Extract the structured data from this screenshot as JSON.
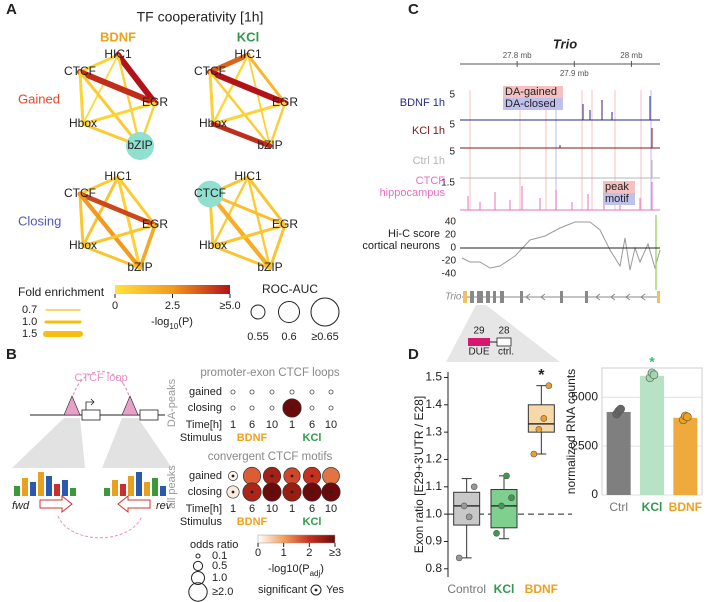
{
  "panels": {
    "A": {
      "label": "A",
      "title": "TF cooperativity [1h]",
      "columns": [
        {
          "name": "BDNF",
          "color": "#eea21b"
        },
        {
          "name": "KCl",
          "color": "#2f9a4c"
        }
      ],
      "rows": [
        {
          "name": "Gained",
          "color": "#e2452b"
        },
        {
          "name": "Closing",
          "color": "#5457b0"
        }
      ],
      "nodes": [
        "HIC1",
        "CTCF",
        "EGR",
        "Hbox",
        "bZIP"
      ],
      "node_color": "#8fe0cf",
      "colormap": [
        "#ffe23d",
        "#f29a1f",
        "#b3121a"
      ],
      "networks": [
        {
          "fold": [
            1.0,
            1.5,
            0.8,
            0.9,
            1.5,
            1.0,
            1.0,
            1.0,
            0.9,
            1.0
          ],
          "logp": [
            0.5,
            5.0,
            0.3,
            0.6,
            4.5,
            0.5,
            0.8,
            0.5,
            0.6,
            0.8
          ],
          "highlight": 4,
          "auc": 0.65
        },
        {
          "fold": [
            1.3,
            1.0,
            0.9,
            0.8,
            1.5,
            1.0,
            0.9,
            1.0,
            0.9,
            1.3
          ],
          "logp": [
            3.5,
            1.5,
            0.4,
            0.6,
            5.0,
            0.6,
            0.8,
            0.5,
            0.7,
            4.5
          ]
        },
        {
          "fold": [
            1.0,
            1.0,
            1.0,
            1.0,
            1.3,
            1.0,
            1.2,
            1.0,
            1.1,
            1.0
          ],
          "logp": [
            0.8,
            0.8,
            1.0,
            0.6,
            4.0,
            1.0,
            2.5,
            1.0,
            2.0,
            1.0
          ]
        },
        {
          "fold": [
            1.0,
            1.0,
            0.9,
            0.9,
            1.0,
            1.0,
            1.2,
            1.0,
            1.0,
            1.0
          ],
          "logp": [
            1.0,
            1.0,
            0.8,
            0.8,
            1.2,
            0.8,
            1.8,
            1.0,
            1.0,
            1.0
          ],
          "highlight": 1,
          "auc": 0.64
        }
      ],
      "legend": {
        "fold_title": "Fold enrichment",
        "fold_color": "#f5bf0f",
        "fold_ticks": [
          0.7,
          {
            "value": 1.0,
            "label": "1.0"
          },
          1.5
        ],
        "p_title": [
          "-log",
          "10",
          "(P)"
        ],
        "p_ticks": [
          0,
          2.5,
          {
            "value": 5,
            "label": "≥5.0"
          }
        ],
        "auc_title": "ROC-AUC",
        "auc_ticks": [
          0.55,
          0.6,
          {
            "value": 0.65,
            "label": "≥0.65"
          }
        ]
      }
    },
    "B": {
      "label": "B",
      "loop_label": "CTCF loop",
      "fwd": "fwd",
      "rev": "rev",
      "time_label": "Time[h]",
      "stimulus_label": "Stimulus",
      "times": [
        1,
        6,
        10
      ],
      "stimuli": [
        {
          "name": "BDNF",
          "color": "#eea21b"
        },
        {
          "name": "KCl",
          "color": "#2f9a4c"
        }
      ],
      "colormap": [
        "#ffffff",
        "#f4a05a",
        "#c8301e",
        "#6b0a0a"
      ],
      "plots": [
        {
          "side_label": "DA-peaks",
          "title": "promoter-exon CTCF loops",
          "rows": [
            "gained",
            "closing"
          ],
          "odds": [
            [
              0.1,
              0.1,
              0.1,
              0.1,
              0.1,
              0.1
            ],
            [
              0.1,
              0.1,
              0.1,
              2.0,
              0.1,
              0.1
            ]
          ],
          "logp": [
            [
              0,
              0,
              0,
              0,
              0,
              0
            ],
            [
              0,
              0,
              0,
              3,
              0,
              0
            ]
          ],
          "significant": [
            [
              false,
              false,
              false,
              false,
              false,
              false
            ],
            [
              false,
              false,
              false,
              true,
              false,
              false
            ]
          ]
        },
        {
          "side_label": "all peaks",
          "title": "convergent CTCF motifs",
          "rows": [
            "gained",
            "closing"
          ],
          "odds": [
            [
              0.5,
              1.8,
              1.8,
              1.6,
              1.8,
              1.7
            ],
            [
              0.9,
              2.0,
              2.0,
              2.0,
              2.0,
              2.0
            ]
          ],
          "logp": [
            [
              0.1,
              1.6,
              2.4,
              1.8,
              2.0,
              1.4
            ],
            [
              0.2,
              2.3,
              3,
              2.5,
              3,
              3
            ]
          ],
          "significant": [
            [
              true,
              false,
              true,
              true,
              true,
              false
            ],
            [
              true,
              true,
              true,
              true,
              true,
              true
            ]
          ]
        }
      ],
      "legend": {
        "odds_title": "odds ratio",
        "odds_ticks": [
          0.1,
          0.5,
          {
            "value": 1,
            "label": "1.0"
          },
          {
            "value": 2,
            "label": "≥2.0"
          }
        ],
        "p_title": [
          "-log10(P",
          "adj",
          ")"
        ],
        "p_ticks": [
          0,
          1,
          2,
          {
            "value": 3,
            "label": "≥3"
          }
        ],
        "sig_title": "significant",
        "sig_label": "Yes"
      }
    },
    "C": {
      "label": "C",
      "title": "Trio",
      "xlim": [
        27.7,
        28.05
      ],
      "xticks": [
        {
          "value": 27.8,
          "label": "27.8 mb"
        },
        {
          "value": 27.9,
          "label": "27.9 mb"
        },
        {
          "value": 28,
          "label": "28 mb"
        }
      ],
      "tracks": [
        {
          "name": [
            "BDNF 1h"
          ],
          "color": "#2a2a8a",
          "scale": "5"
        },
        {
          "name": [
            "KCl 1h"
          ],
          "color": "#7a1c1c",
          "scale": "5"
        },
        {
          "name": [
            "Ctrl 1h"
          ],
          "color": "#b5b5b5",
          "scale": "5"
        },
        {
          "name": [
            "CTCF",
            "hippocampus"
          ],
          "color": "#e86fc0",
          "scale": "1.5"
        }
      ],
      "da_legend": [
        {
          "name": "DA-gained",
          "color": "#f4c0c0"
        },
        {
          "name": "DA-closed",
          "color": "#c0c0ec"
        }
      ],
      "ctcf_legend": [
        {
          "name": "peak",
          "color": "#f4c0c0"
        },
        {
          "name": "motif",
          "color": "#c0c0ec"
        }
      ],
      "hic_title": [
        "Hi-C score",
        "cortical neurons"
      ],
      "hic_ylim": [
        -50,
        50
      ],
      "hic_yticks": [
        40,
        20,
        0,
        -20,
        -40
      ],
      "gene": "Trio",
      "exons": [
        "29",
        "28"
      ],
      "exon_labels": [
        "DUE",
        "ctrl."
      ]
    },
    "D": {
      "label": "D"
    }
  },
  "chart_data": [
    {
      "type": "box",
      "ylabel": "Exon ratio [E29+3'UTR / E28]",
      "categories": [
        "Control",
        "KCl",
        "BDNF"
      ],
      "label_colors": [
        "#777777",
        "#2f9a4c",
        "#eea21b"
      ],
      "colors": [
        "#c8c8c8",
        "#7fd08f",
        "#f7d8a8"
      ],
      "point_colors": [
        "#999999",
        "#3c9a50",
        "#e8a030"
      ],
      "ylim": [
        0.77,
        1.52
      ],
      "yticks": [
        0.8,
        0.9,
        {
          "value": 1,
          "label": "1.0"
        },
        1.1,
        1.2,
        1.3,
        1.4,
        1.5
      ],
      "reference_line": 1,
      "boxes": [
        {
          "min": 0.84,
          "q1": 0.96,
          "median": 1.03,
          "q3": 1.08,
          "max": 1.13,
          "points": [
            0.84,
            1.03,
            0.99,
            1.1
          ]
        },
        {
          "min": 0.91,
          "q1": 0.95,
          "median": 1.03,
          "q3": 1.09,
          "max": 1.14,
          "points": [
            0.93,
            1.03,
            1.14,
            1.06
          ]
        },
        {
          "min": 1.22,
          "q1": 1.3,
          "median": 1.33,
          "q3": 1.4,
          "max": 1.47,
          "points": [
            1.22,
            1.31,
            1.35,
            1.47
          ]
        }
      ],
      "annotations": [
        {
          "text": "*",
          "category": 2,
          "color": "#222222"
        }
      ]
    },
    {
      "type": "bar",
      "ylabel": "normalized RNA counts",
      "categories": [
        "Ctrl",
        "KCl",
        "BDNF"
      ],
      "label_colors": [
        "#777777",
        "#2f9a4c",
        "#eea21b"
      ],
      "colors": [
        "#7f7f7f",
        "#b7e2c3",
        "#f0a93c"
      ],
      "point_colors": [
        "#666666",
        "#9fd8ad",
        "#eea21b"
      ],
      "values": [
        4250,
        6100,
        3950
      ],
      "points": [
        [
          4150,
          4300,
          4400
        ],
        [
          6000,
          6250,
          6150
        ],
        [
          3850,
          4050,
          4000
        ]
      ],
      "ylim": [
        0,
        6500
      ],
      "yticks": [
        0,
        2500,
        5000
      ],
      "grid": true,
      "annotations": [
        {
          "text": "*",
          "category": 1,
          "color": "#3fc06a"
        }
      ]
    }
  ]
}
